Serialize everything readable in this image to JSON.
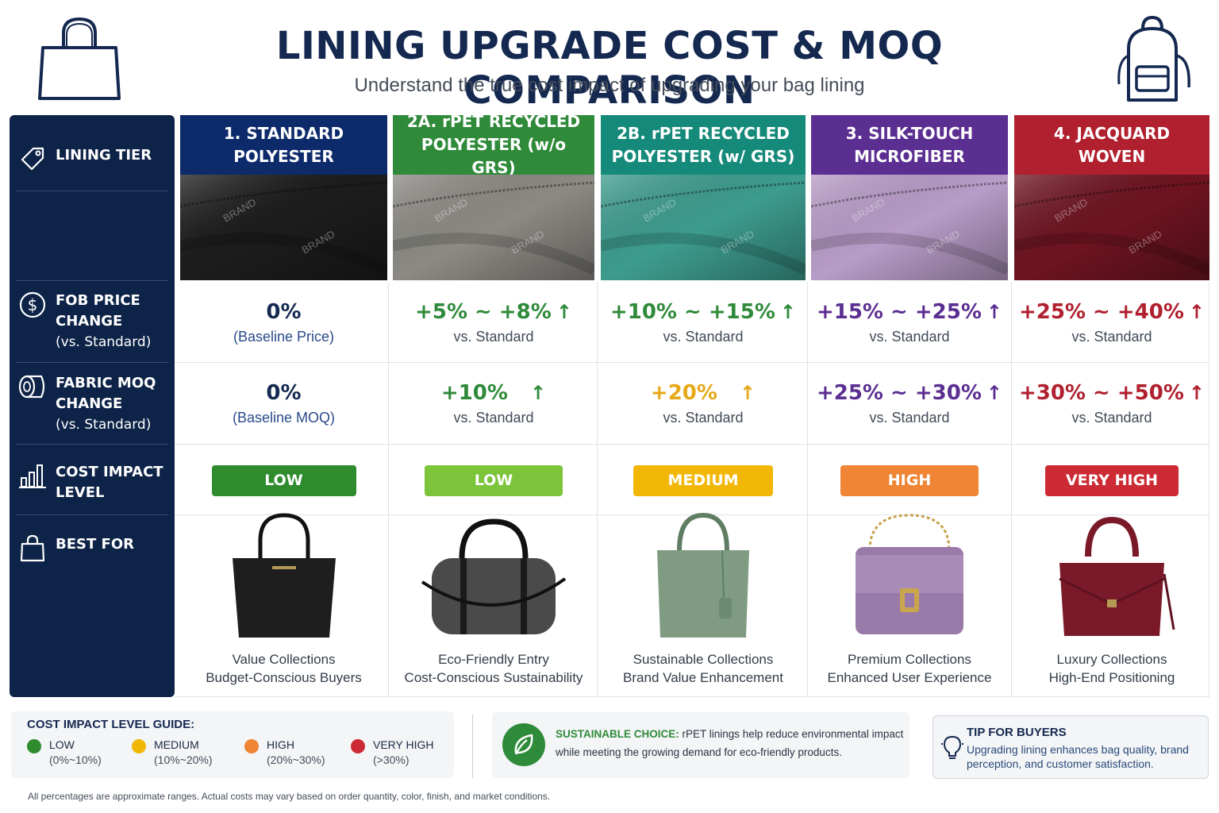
{
  "header": {
    "title": "LINING UPGRADE COST & MOQ COMPARISON",
    "subtitle": "Understand the true cost impact of upgrading your bag lining",
    "left_icon": "handbag-outline-icon",
    "right_icon": "backpack-outline-icon"
  },
  "row_labels": {
    "tier": "LINING TIER",
    "fob": {
      "title_1": "FOB PRICE",
      "title_2": "CHANGE",
      "sub": "(vs. Standard)"
    },
    "moq": {
      "title_1": "FABRIC MOQ",
      "title_2": "CHANGE",
      "sub": "(vs. Standard)"
    },
    "impact": {
      "title_1": "COST IMPACT",
      "title_2": "LEVEL"
    },
    "best": "BEST FOR"
  },
  "tiers": [
    {
      "name_1": "1. STANDARD",
      "name_2": "POLYESTER",
      "head_color": "#0d2a6b",
      "swatch_color": "#1c1c1c",
      "fob_value": "0%",
      "fob_note": "(Baseline Price)",
      "fob_color": "#142850",
      "moq_value": "0%",
      "moq_note": "(Baseline MOQ)",
      "moq_color": "#142850",
      "impact": "LOW",
      "impact_color": "#2e8b2e",
      "best_1": "Value Collections",
      "best_2": "Budget-Conscious Buyers",
      "bag_color": "#1e1e1e"
    },
    {
      "name_1": "2A. rPET RECYCLED",
      "name_2": "POLYESTER (w/o GRS)",
      "head_color": "#2f8a3a",
      "swatch_color": "#8c8a84",
      "fob_value": "+5% ~ +8%",
      "fob_note": "vs. Standard",
      "fob_color": "#2f8a3a",
      "moq_value": "+10%",
      "moq_note": "vs. Standard",
      "moq_color": "#2f8a3a",
      "impact": "LOW",
      "impact_color": "#7cc43a",
      "best_1": "Eco-Friendly Entry",
      "best_2": "Cost-Conscious Sustainability",
      "bag_color": "#4a4a4a"
    },
    {
      "name_1": "2B. rPET RECYCLED",
      "name_2": "POLYESTER (w/ GRS)",
      "head_color": "#168a7a",
      "swatch_color": "#3d9c8e",
      "fob_value": "+10% ~ +15%",
      "fob_note": "vs. Standard",
      "fob_color": "#2f8a3a",
      "moq_value": "+20%",
      "moq_note": "vs. Standard",
      "moq_color": "#e6a817",
      "impact": "MEDIUM",
      "impact_color": "#f2b705",
      "best_1": "Sustainable Collections",
      "best_2": "Brand Value Enhancement",
      "bag_color": "#7f9c82"
    },
    {
      "name_1": "3. SILK-TOUCH",
      "name_2": "MICROFIBER",
      "head_color": "#5b2e91",
      "swatch_color": "#b89cc8",
      "fob_value": "+15% ~ +25%",
      "fob_note": "vs. Standard",
      "fob_color": "#5b2e91",
      "moq_value": "+25% ~ +30%",
      "moq_note": "vs. Standard",
      "moq_color": "#5b2e91",
      "impact": "HIGH",
      "impact_color": "#ef8535",
      "best_1": "Premium Collections",
      "best_2": "Enhanced User Experience",
      "bag_color": "#9a7aa8"
    },
    {
      "name_1": "4. JACQUARD",
      "name_2": "WOVEN",
      "head_color": "#b0202e",
      "swatch_color": "#6e1420",
      "fob_value": "+25% ~ +40%",
      "fob_note": "vs. Standard",
      "fob_color": "#b0202e",
      "moq_value": "+30% ~ +50%",
      "moq_note": "vs. Standard",
      "moq_color": "#b0202e",
      "impact": "VERY HIGH",
      "impact_color": "#cc2a34",
      "best_1": "Luxury Collections",
      "best_2": "High-End Positioning",
      "bag_color": "#7a1a28"
    }
  ],
  "guide": {
    "title": "COST IMPACT LEVEL GUIDE:",
    "items": [
      {
        "name": "LOW",
        "range": "(0%~10%)",
        "color": "#2e8b2e"
      },
      {
        "name": "MEDIUM",
        "range": "(10%~20%)",
        "color": "#f2b705"
      },
      {
        "name": "HIGH",
        "range": "(20%~30%)",
        "color": "#ef8535"
      },
      {
        "name": "VERY HIGH",
        "range": "(>30%)",
        "color": "#cc2a34"
      }
    ]
  },
  "sustain": {
    "label": "SUSTAINABLE CHOICE:",
    "text_1": " rPET linings help reduce environmental impact",
    "text_2": "while meeting the growing demand for eco-friendly products.",
    "icon": "leaf-icon"
  },
  "tip": {
    "title": "TIP FOR BUYERS",
    "text": "Upgrading lining enhances bag quality, brand perception, and customer satisfaction.",
    "icon": "lightbulb-icon"
  },
  "footnote": "All percentages are approximate ranges. Actual costs may vary based on order quantity, color, finish, and market conditions.",
  "brand_text": "BRAND"
}
